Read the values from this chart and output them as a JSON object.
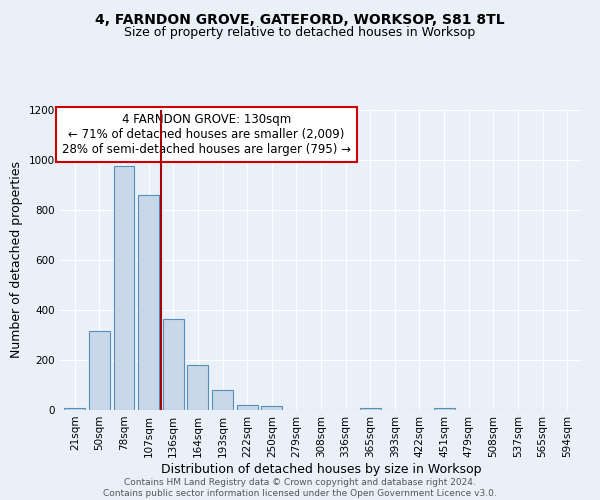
{
  "title1": "4, FARNDON GROVE, GATEFORD, WORKSOP, S81 8TL",
  "title2": "Size of property relative to detached houses in Worksop",
  "xlabel": "Distribution of detached houses by size in Worksop",
  "ylabel": "Number of detached properties",
  "categories": [
    "21sqm",
    "50sqm",
    "78sqm",
    "107sqm",
    "136sqm",
    "164sqm",
    "193sqm",
    "222sqm",
    "250sqm",
    "279sqm",
    "308sqm",
    "336sqm",
    "365sqm",
    "393sqm",
    "422sqm",
    "451sqm",
    "479sqm",
    "508sqm",
    "537sqm",
    "565sqm",
    "594sqm"
  ],
  "values": [
    10,
    315,
    975,
    860,
    365,
    180,
    80,
    22,
    15,
    0,
    0,
    0,
    10,
    0,
    0,
    10,
    0,
    0,
    0,
    0,
    0
  ],
  "bar_color": "#c8d8e8",
  "bar_edge_color": "#5590bb",
  "bar_edge_width": 0.8,
  "red_line_x": 3.5,
  "red_line_color": "#aa0000",
  "annotation_text": "4 FARNDON GROVE: 130sqm\n← 71% of detached houses are smaller (2,009)\n28% of semi-detached houses are larger (795) →",
  "annotation_box_color": "#ffffff",
  "annotation_box_edge_color": "#cc0000",
  "annotation_fontsize": 8.5,
  "ylim": [
    0,
    1200
  ],
  "yticks": [
    0,
    200,
    400,
    600,
    800,
    1000,
    1200
  ],
  "background_color": "#eaf0f8",
  "grid_color": "#ffffff",
  "footer": "Contains HM Land Registry data © Crown copyright and database right 2024.\nContains public sector information licensed under the Open Government Licence v3.0.",
  "title1_fontsize": 10,
  "title2_fontsize": 9,
  "xlabel_fontsize": 9,
  "ylabel_fontsize": 9,
  "tick_fontsize": 7.5,
  "footer_fontsize": 6.5
}
